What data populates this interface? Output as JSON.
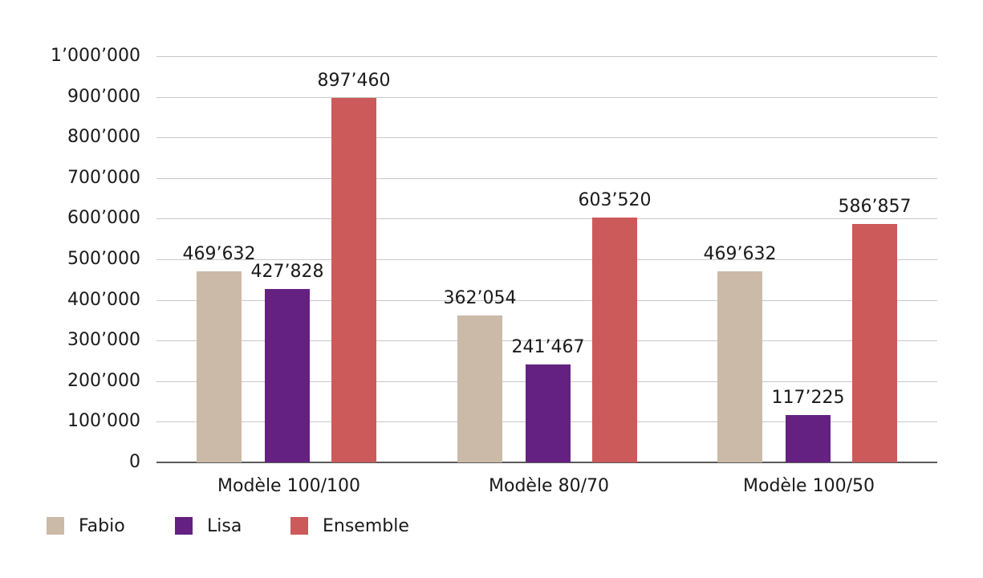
{
  "chart_data": {
    "type": "bar",
    "title": "",
    "xlabel": "",
    "ylabel": "",
    "ylim": [
      0,
      1000000
    ],
    "yticks": [
      "0",
      "100’000",
      "200’000",
      "300’000",
      "400’000",
      "500’000",
      "600’000",
      "700’000",
      "800’000",
      "900’000",
      "1’000’000"
    ],
    "grid": true,
    "legend_position": "bottom-left",
    "categories": [
      "Modèle 100/100",
      "Modèle 80/70",
      "Modèle 100/50"
    ],
    "series": [
      {
        "name": "Fabio",
        "color": "#cbbaa8",
        "values": [
          469632,
          362054,
          469632
        ],
        "labels": [
          "469’632",
          "362’054",
          "469’632"
        ]
      },
      {
        "name": "Lisa",
        "color": "#652182",
        "values": [
          427828,
          241467,
          117225
        ],
        "labels": [
          "427’828",
          "241’467",
          "117’225"
        ]
      },
      {
        "name": "Ensemble",
        "color": "#cc5a5a",
        "values": [
          897460,
          603520,
          586857
        ],
        "labels": [
          "897’460",
          "603’520",
          "586’857"
        ]
      }
    ]
  }
}
